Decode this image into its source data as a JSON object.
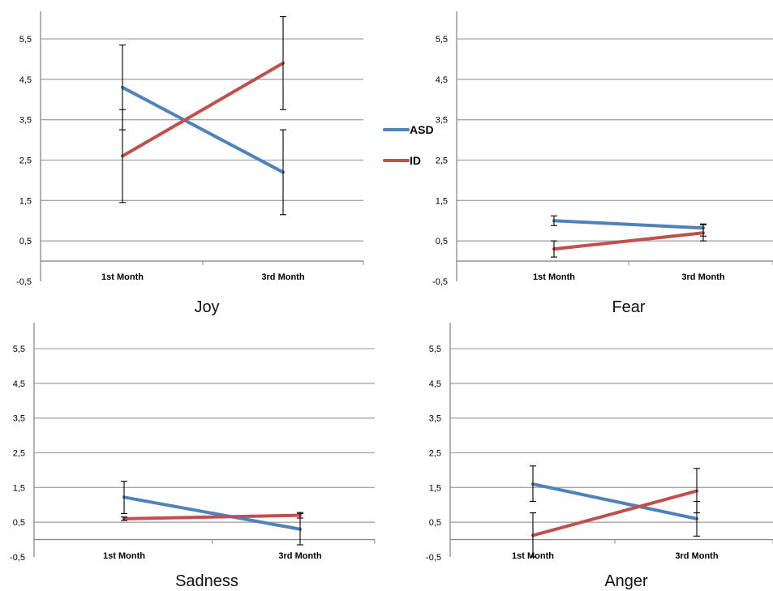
{
  "legend": [
    {
      "name": "ASD",
      "color": "#4f81bd"
    },
    {
      "name": "ID",
      "color": "#c0504d"
    }
  ],
  "chart_data": [
    {
      "type": "line",
      "title": "Joy",
      "categories": [
        "1st Month",
        "3rd Month"
      ],
      "yticks": [
        "-0,5",
        "0,5",
        "1,5",
        "2,5",
        "3,5",
        "4,5",
        "5,5"
      ],
      "ylim": [
        -0.5,
        6.2
      ],
      "grid": true,
      "legend_position": "right",
      "series": [
        {
          "name": "ASD",
          "color": "#4f81bd",
          "values": [
            4.3,
            2.2
          ],
          "err_low": [
            3.25,
            1.15
          ],
          "err_high": [
            5.35,
            3.25
          ]
        },
        {
          "name": "ID",
          "color": "#c0504d",
          "values": [
            2.6,
            4.9
          ],
          "err_low": [
            1.45,
            3.75
          ],
          "err_high": [
            3.75,
            6.05
          ]
        }
      ]
    },
    {
      "type": "line",
      "title": "Fear",
      "categories": [
        "1st Month",
        "3rd Month"
      ],
      "yticks": [
        "-0,5",
        "0,5",
        "1,5",
        "2,5",
        "3,5",
        "4,5",
        "5,5"
      ],
      "ylim": [
        -0.5,
        6.2
      ],
      "grid": true,
      "series": [
        {
          "name": "ASD",
          "color": "#4f81bd",
          "values": [
            1.0,
            0.82
          ],
          "err_low": [
            0.88,
            0.62
          ],
          "err_high": [
            1.12,
            0.92
          ]
        },
        {
          "name": "ID",
          "color": "#c0504d",
          "values": [
            0.3,
            0.7
          ],
          "err_low": [
            0.1,
            0.5
          ],
          "err_high": [
            0.5,
            0.9
          ]
        }
      ]
    },
    {
      "type": "line",
      "title": "Sadness",
      "categories": [
        "1st Month",
        "3rd Month"
      ],
      "yticks": [
        "-0,5",
        "0,5",
        "1,5",
        "2,5",
        "3,5",
        "4,5",
        "5,5"
      ],
      "ylim": [
        -0.5,
        6.2
      ],
      "grid": true,
      "series": [
        {
          "name": "ASD",
          "color": "#4f81bd",
          "values": [
            1.22,
            0.3
          ],
          "err_low": [
            0.75,
            -0.15
          ],
          "err_high": [
            1.68,
            0.75
          ]
        },
        {
          "name": "ID",
          "color": "#c0504d",
          "values": [
            0.6,
            0.7
          ],
          "err_low": [
            0.55,
            0.62
          ],
          "err_high": [
            0.65,
            0.78
          ]
        }
      ]
    },
    {
      "type": "line",
      "title": "Anger",
      "categories": [
        "1st Month",
        "3rd Month"
      ],
      "yticks": [
        "-0,5",
        "0,5",
        "1,5",
        "2,5",
        "3,5",
        "4,5",
        "5,5"
      ],
      "ylim": [
        -0.5,
        6.2
      ],
      "grid": true,
      "series": [
        {
          "name": "ASD",
          "color": "#4f81bd",
          "values": [
            1.6,
            0.6
          ],
          "err_low": [
            1.1,
            0.1
          ],
          "err_high": [
            2.12,
            1.1
          ]
        },
        {
          "name": "ID",
          "color": "#c0504d",
          "values": [
            0.12,
            1.4
          ],
          "err_low": [
            -0.5,
            0.77
          ],
          "err_high": [
            0.77,
            2.05
          ]
        }
      ]
    }
  ]
}
